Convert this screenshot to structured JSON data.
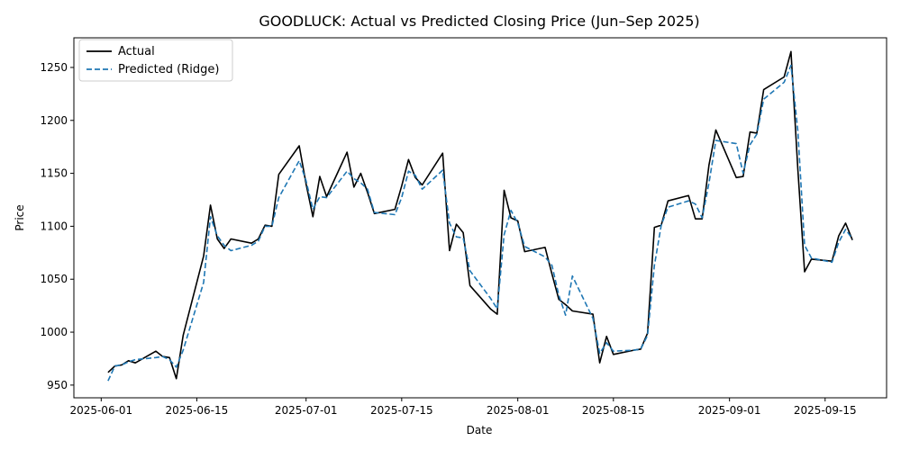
{
  "chart_data": {
    "type": "line",
    "title": "GOODLUCK: Actual vs Predicted Closing Price (Jun–Sep 2025)",
    "xlabel": "Date",
    "ylabel": "Price",
    "xlim": [
      "2025-05-28",
      "2025-09-24"
    ],
    "ylim": [
      938,
      1278
    ],
    "x_ticks": [
      "2025-06-01",
      "2025-06-15",
      "2025-07-01",
      "2025-07-15",
      "2025-08-01",
      "2025-08-15",
      "2025-09-01",
      "2025-09-15"
    ],
    "y_ticks": [
      950,
      1000,
      1050,
      1100,
      1150,
      1200,
      1250
    ],
    "grid": false,
    "legend_position": "top-left",
    "series": [
      {
        "name": "Actual",
        "color": "#000000",
        "style": "solid",
        "points": [
          [
            "2025-06-02",
            962
          ],
          [
            "2025-06-03",
            968
          ],
          [
            "2025-06-04",
            969
          ],
          [
            "2025-06-05",
            973
          ],
          [
            "2025-06-06",
            971
          ],
          [
            "2025-06-09",
            982
          ],
          [
            "2025-06-10",
            977
          ],
          [
            "2025-06-11",
            976
          ],
          [
            "2025-06-12",
            956
          ],
          [
            "2025-06-13",
            997
          ],
          [
            "2025-06-16",
            1072
          ],
          [
            "2025-06-17",
            1120
          ],
          [
            "2025-06-18",
            1088
          ],
          [
            "2025-06-19",
            1079
          ],
          [
            "2025-06-20",
            1088
          ],
          [
            "2025-06-23",
            1084
          ],
          [
            "2025-06-24",
            1088
          ],
          [
            "2025-06-25",
            1101
          ],
          [
            "2025-06-26",
            1100
          ],
          [
            "2025-06-27",
            1149
          ],
          [
            "2025-06-30",
            1176
          ],
          [
            "2025-07-01",
            1140
          ],
          [
            "2025-07-02",
            1109
          ],
          [
            "2025-07-03",
            1147
          ],
          [
            "2025-07-04",
            1128
          ],
          [
            "2025-07-07",
            1170
          ],
          [
            "2025-07-08",
            1137
          ],
          [
            "2025-07-09",
            1150
          ],
          [
            "2025-07-10",
            1132
          ],
          [
            "2025-07-11",
            1112
          ],
          [
            "2025-07-14",
            1116
          ],
          [
            "2025-07-15",
            1138
          ],
          [
            "2025-07-16",
            1163
          ],
          [
            "2025-07-17",
            1146
          ],
          [
            "2025-07-18",
            1139
          ],
          [
            "2025-07-21",
            1169
          ],
          [
            "2025-07-22",
            1077
          ],
          [
            "2025-07-23",
            1102
          ],
          [
            "2025-07-24",
            1094
          ],
          [
            "2025-07-25",
            1044
          ],
          [
            "2025-07-28",
            1022
          ],
          [
            "2025-07-29",
            1017
          ],
          [
            "2025-07-30",
            1134
          ],
          [
            "2025-07-31",
            1108
          ],
          [
            "2025-08-01",
            1105
          ],
          [
            "2025-08-02",
            1076
          ],
          [
            "2025-08-05",
            1080
          ],
          [
            "2025-08-06",
            1055
          ],
          [
            "2025-08-07",
            1031
          ],
          [
            "2025-08-08",
            1026
          ],
          [
            "2025-08-09",
            1020
          ],
          [
            "2025-08-12",
            1017
          ],
          [
            "2025-08-13",
            971
          ],
          [
            "2025-08-14",
            996
          ],
          [
            "2025-08-15",
            979
          ],
          [
            "2025-08-18",
            983
          ],
          [
            "2025-08-19",
            984
          ],
          [
            "2025-08-20",
            999
          ],
          [
            "2025-08-21",
            1099
          ],
          [
            "2025-08-22",
            1101
          ],
          [
            "2025-08-23",
            1124
          ],
          [
            "2025-08-26",
            1129
          ],
          [
            "2025-08-27",
            1107
          ],
          [
            "2025-08-28",
            1107
          ],
          [
            "2025-08-29",
            1158
          ],
          [
            "2025-08-30",
            1191
          ],
          [
            "2025-09-02",
            1146
          ],
          [
            "2025-09-03",
            1147
          ],
          [
            "2025-09-04",
            1189
          ],
          [
            "2025-09-05",
            1188
          ],
          [
            "2025-09-06",
            1229
          ],
          [
            "2025-09-09",
            1241
          ],
          [
            "2025-09-10",
            1265
          ],
          [
            "2025-09-11",
            1154
          ],
          [
            "2025-09-12",
            1057
          ],
          [
            "2025-09-13",
            1069
          ],
          [
            "2025-09-16",
            1067
          ],
          [
            "2025-09-17",
            1091
          ],
          [
            "2025-09-18",
            1103
          ],
          [
            "2025-09-19",
            1087
          ]
        ]
      },
      {
        "name": "Predicted (Ridge)",
        "color": "#1f77b4",
        "style": "dashed",
        "points": [
          [
            "2025-06-02",
            954
          ],
          [
            "2025-06-03",
            968
          ],
          [
            "2025-06-04",
            969
          ],
          [
            "2025-06-05",
            972
          ],
          [
            "2025-06-06",
            974
          ],
          [
            "2025-06-09",
            976
          ],
          [
            "2025-06-10",
            977
          ],
          [
            "2025-06-11",
            974
          ],
          [
            "2025-06-12",
            967
          ],
          [
            "2025-06-13",
            983
          ],
          [
            "2025-06-16",
            1047
          ],
          [
            "2025-06-17",
            1109
          ],
          [
            "2025-06-18",
            1091
          ],
          [
            "2025-06-19",
            1082
          ],
          [
            "2025-06-20",
            1077
          ],
          [
            "2025-06-23",
            1082
          ],
          [
            "2025-06-24",
            1086
          ],
          [
            "2025-06-25",
            1100
          ],
          [
            "2025-06-26",
            1100
          ],
          [
            "2025-06-27",
            1127
          ],
          [
            "2025-06-30",
            1162
          ],
          [
            "2025-07-01",
            1143
          ],
          [
            "2025-07-02",
            1116
          ],
          [
            "2025-07-03",
            1128
          ],
          [
            "2025-07-04",
            1127
          ],
          [
            "2025-07-07",
            1152
          ],
          [
            "2025-07-08",
            1145
          ],
          [
            "2025-07-09",
            1141
          ],
          [
            "2025-07-10",
            1135
          ],
          [
            "2025-07-11",
            1113
          ],
          [
            "2025-07-14",
            1111
          ],
          [
            "2025-07-15",
            1127
          ],
          [
            "2025-07-16",
            1152
          ],
          [
            "2025-07-17",
            1148
          ],
          [
            "2025-07-18",
            1135
          ],
          [
            "2025-07-21",
            1153
          ],
          [
            "2025-07-22",
            1103
          ],
          [
            "2025-07-23",
            1090
          ],
          [
            "2025-07-24",
            1089
          ],
          [
            "2025-07-25",
            1058
          ],
          [
            "2025-07-28",
            1032
          ],
          [
            "2025-07-29",
            1022
          ],
          [
            "2025-07-30",
            1092
          ],
          [
            "2025-07-31",
            1115
          ],
          [
            "2025-08-01",
            1103
          ],
          [
            "2025-08-02",
            1081
          ],
          [
            "2025-08-05",
            1071
          ],
          [
            "2025-08-06",
            1063
          ],
          [
            "2025-08-07",
            1035
          ],
          [
            "2025-08-08",
            1016
          ],
          [
            "2025-08-09",
            1053
          ],
          [
            "2025-08-12",
            1013
          ],
          [
            "2025-08-13",
            980
          ],
          [
            "2025-08-14",
            990
          ],
          [
            "2025-08-15",
            982
          ],
          [
            "2025-08-18",
            983
          ],
          [
            "2025-08-19",
            984
          ],
          [
            "2025-08-20",
            997
          ],
          [
            "2025-08-21",
            1063
          ],
          [
            "2025-08-22",
            1101
          ],
          [
            "2025-08-23",
            1118
          ],
          [
            "2025-08-26",
            1124
          ],
          [
            "2025-08-27",
            1121
          ],
          [
            "2025-08-28",
            1108
          ],
          [
            "2025-08-29",
            1141
          ],
          [
            "2025-08-30",
            1181
          ],
          [
            "2025-09-02",
            1178
          ],
          [
            "2025-09-03",
            1150
          ],
          [
            "2025-09-04",
            1177
          ],
          [
            "2025-09-05",
            1187
          ],
          [
            "2025-09-06",
            1220
          ],
          [
            "2025-09-09",
            1236
          ],
          [
            "2025-09-10",
            1252
          ],
          [
            "2025-09-11",
            1190
          ],
          [
            "2025-09-12",
            1082
          ],
          [
            "2025-09-13",
            1070
          ],
          [
            "2025-09-16",
            1066
          ],
          [
            "2025-09-17",
            1085
          ],
          [
            "2025-09-18",
            1097
          ],
          [
            "2025-09-19",
            1088
          ]
        ]
      }
    ]
  }
}
